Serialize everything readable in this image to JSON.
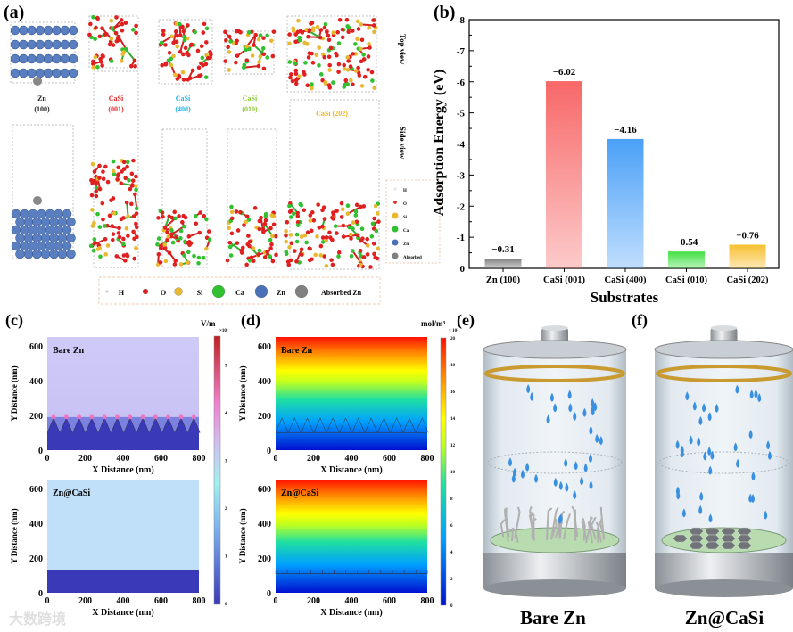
{
  "panel_labels": {
    "a": "(a)",
    "b": "(b)",
    "c": "(c)",
    "d": "(d)",
    "e": "(e)",
    "f": "(f)"
  },
  "panel_a": {
    "structures": [
      {
        "name": "Zn",
        "facet": "(100)",
        "color": "#222222"
      },
      {
        "name": "CaSi",
        "facet": "(001)",
        "color": "#e8262a"
      },
      {
        "name": "CaSi",
        "facet": "(400)",
        "color": "#1fb3e8"
      },
      {
        "name": "CaSi",
        "facet": "(010)",
        "color": "#8cc83c"
      },
      {
        "name": "CaSi (202)",
        "facet": "",
        "color": "#f4b41a"
      }
    ],
    "view_labels": {
      "top": "Top view",
      "side": "Side view"
    },
    "legend": [
      {
        "label": "H",
        "color": "#e8e8f0"
      },
      {
        "label": "O",
        "color": "#e02020"
      },
      {
        "label": "Si",
        "color": "#e8b830"
      },
      {
        "label": "Ca",
        "color": "#30c030"
      },
      {
        "label": "Zn",
        "color": "#4a70b8"
      },
      {
        "label": "Absorbed Zn",
        "color": "#808080"
      }
    ],
    "legend_small": [
      "H",
      "O",
      "Si",
      "Ca",
      "Zn",
      "Absorbed"
    ]
  },
  "chart_data": {
    "type": "bar",
    "title": "",
    "xlabel": "Substrates",
    "ylabel": "Adsorption Energy (eV)",
    "categories": [
      "Zn (100)",
      "CaSi (001)",
      "CaSi (400)",
      "CaSi (010)",
      "CaSi (202)"
    ],
    "values": [
      -0.31,
      -6.02,
      -4.16,
      -0.54,
      -0.76
    ],
    "data_labels": [
      "−0.31",
      "−6.02",
      "−4.16",
      "−0.54",
      "−0.76"
    ],
    "colors": [
      "#808080",
      "#f86868",
      "#4aa0f8",
      "#40e040",
      "#f8c030"
    ],
    "ylim": [
      0,
      -8
    ],
    "yticks": [
      "0",
      "-1",
      "-2",
      "-3",
      "-4",
      "-5",
      "-6",
      "-7",
      "-8"
    ],
    "grid": false
  },
  "panel_c": {
    "unit": "V/m",
    "exponent": "×10⁴",
    "colorbar_ticks": [
      "0",
      "1",
      "2",
      "3",
      "4",
      "5"
    ],
    "plots": [
      {
        "label": "Bare Zn"
      },
      {
        "label": "Zn@CaSi"
      }
    ],
    "xlabel": "X Distance (nm)",
    "ylabel": "Y Distance (nm)",
    "xticks": [
      "0",
      "200",
      "400",
      "600",
      "800"
    ],
    "yticks": [
      "0",
      "200",
      "400",
      "600"
    ]
  },
  "panel_d": {
    "unit": "mol/m³",
    "exponent": "× 10²",
    "colorbar_ticks": [
      "0",
      "2",
      "4",
      "6",
      "8",
      "10",
      "12",
      "14",
      "16",
      "18",
      "20"
    ],
    "plots": [
      {
        "label": "Bare Zn"
      },
      {
        "label": "Zn@CaSi"
      }
    ],
    "xlabel": "X Distance (nm)",
    "ylabel": "Y Distance (nm)",
    "xticks": [
      "0",
      "200",
      "400",
      "600",
      "800"
    ],
    "yticks": [
      "0",
      "200",
      "400",
      "600"
    ]
  },
  "panel_e": {
    "label": "Bare Zn"
  },
  "panel_f": {
    "label": "Zn@CaSi"
  },
  "watermark": "大数跨境"
}
